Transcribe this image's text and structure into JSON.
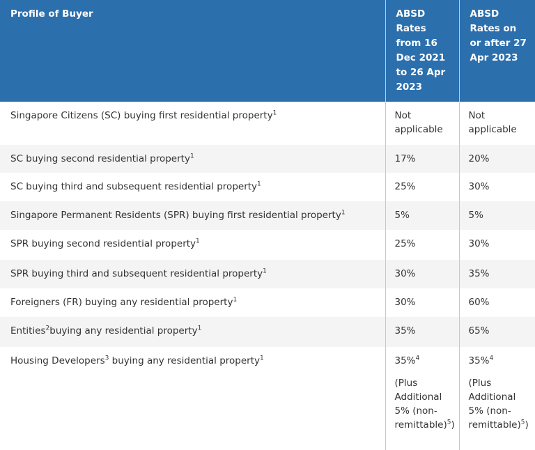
{
  "table": {
    "header": [
      "Profile of Buyer",
      "ABSD Rates from 16 Dec 2021 to 26 Apr 2023",
      "ABSD Rates on or after 27 Apr 2023"
    ],
    "rows": [
      [
        [
          [
            {
              "text": "Singapore Citizens (SC) buying first residential property"
            },
            {
              "sup": "1"
            }
          ]
        ],
        [
          [
            {
              "text": "Not applicable"
            }
          ]
        ],
        [
          [
            {
              "text": "Not applicable"
            }
          ]
        ]
      ],
      [
        [
          [
            {
              "text": "SC buying second residential property"
            },
            {
              "sup": "1"
            }
          ]
        ],
        [
          [
            {
              "text": "17%"
            }
          ]
        ],
        [
          [
            {
              "text": "20%"
            }
          ]
        ]
      ],
      [
        [
          [
            {
              "text": "SC buying third and subsequent residential property"
            },
            {
              "sup": "1"
            }
          ]
        ],
        [
          [
            {
              "text": "25%"
            }
          ]
        ],
        [
          [
            {
              "text": "30%"
            }
          ]
        ]
      ],
      [
        [
          [
            {
              "text": "Singapore Permanent Residents (SPR) buying first residential property"
            },
            {
              "sup": "1"
            }
          ]
        ],
        [
          [
            {
              "text": "5%"
            }
          ]
        ],
        [
          [
            {
              "text": "5%"
            }
          ]
        ]
      ],
      [
        [
          [
            {
              "text": "SPR buying second residential property"
            },
            {
              "sup": "1"
            }
          ]
        ],
        [
          [
            {
              "text": "25%"
            }
          ]
        ],
        [
          [
            {
              "text": "30%"
            }
          ]
        ]
      ],
      [
        [
          [
            {
              "text": "SPR buying third and subsequent residential property"
            },
            {
              "sup": "1"
            }
          ]
        ],
        [
          [
            {
              "text": "30%"
            }
          ]
        ],
        [
          [
            {
              "text": "35%"
            }
          ]
        ]
      ],
      [
        [
          [
            {
              "text": "Foreigners (FR) buying any residential property"
            },
            {
              "sup": "1"
            }
          ]
        ],
        [
          [
            {
              "text": "30%"
            }
          ]
        ],
        [
          [
            {
              "text": "60%"
            }
          ]
        ]
      ],
      [
        [
          [
            {
              "text": "Entities"
            },
            {
              "sup": "2"
            },
            {
              "text": "buying any residential property"
            },
            {
              "sup": "1"
            }
          ]
        ],
        [
          [
            {
              "text": "35%"
            }
          ]
        ],
        [
          [
            {
              "text": "65%"
            }
          ]
        ]
      ],
      [
        [
          [
            {
              "text": "Housing Developers"
            },
            {
              "sup": "3"
            },
            {
              "text": " buying any residential property"
            },
            {
              "sup": "1"
            }
          ]
        ],
        [
          [
            {
              "text": "35%"
            },
            {
              "sup": "4"
            }
          ],
          [
            {
              "text": "(Plus Additional 5% (non-remittable)"
            },
            {
              "sup": "5"
            },
            {
              "text": ")"
            }
          ]
        ],
        [
          [
            {
              "text": "35%"
            },
            {
              "sup": "4"
            }
          ],
          [
            {
              "text": "(Plus Additional 5% (non-remittable)"
            },
            {
              "sup": "5"
            },
            {
              "text": ")"
            }
          ]
        ]
      ]
    ]
  }
}
